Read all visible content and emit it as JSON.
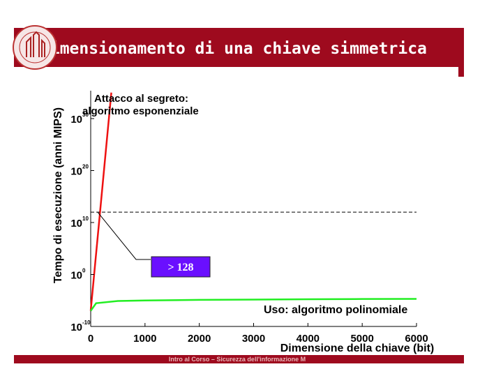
{
  "slide_title": "Dimensionamento di una chiave simmetrica",
  "footer": "Intro al Corso – Sicurezza dell'informazione M",
  "chart_data": {
    "type": "line",
    "x_label": "Dimensione della chiave (bit)",
    "y_label": "Tempo di esecuzione  (anni MIPS)",
    "log_y": true,
    "xlim": [
      0,
      6000
    ],
    "xticks": [
      0,
      1000,
      2000,
      3000,
      4000,
      5000,
      6000
    ],
    "ylim": [
      1e-10,
      1e+35
    ],
    "yticks": [
      {
        "value": 1e-10,
        "label": "10",
        "exponent": "-10"
      },
      {
        "value": 1,
        "label": "10",
        "exponent": "0"
      },
      {
        "value": 10000000000.0,
        "label": "10",
        "exponent": "10"
      },
      {
        "value": 1e+20,
        "label": "10",
        "exponent": "20"
      },
      {
        "value": 1e+30,
        "label": "10",
        "exponent": "30"
      }
    ],
    "series": [
      {
        "name": "Attacco al segreto: algoritmo esponenziale",
        "lines": [
          "Attacco al segreto:",
          "algoritmo esponenziale"
        ],
        "color": "#ee1111",
        "x": [
          0,
          380
        ],
        "values": [
          1e-07,
          1e+35
        ]
      },
      {
        "name": "Uso: algoritmo polinomiale",
        "color": "#22ee22",
        "x": [
          0,
          100,
          500,
          1000,
          2000,
          3000,
          4000,
          5000,
          6000
        ],
        "values": [
          1e-07,
          3e-06,
          8e-06,
          1e-05,
          1.3e-05,
          1.5e-05,
          1.7e-05,
          1.9e-05,
          2e-05
        ]
      }
    ],
    "reference_line": {
      "y": 1000000000000.0
    },
    "annotation": "> 128"
  }
}
